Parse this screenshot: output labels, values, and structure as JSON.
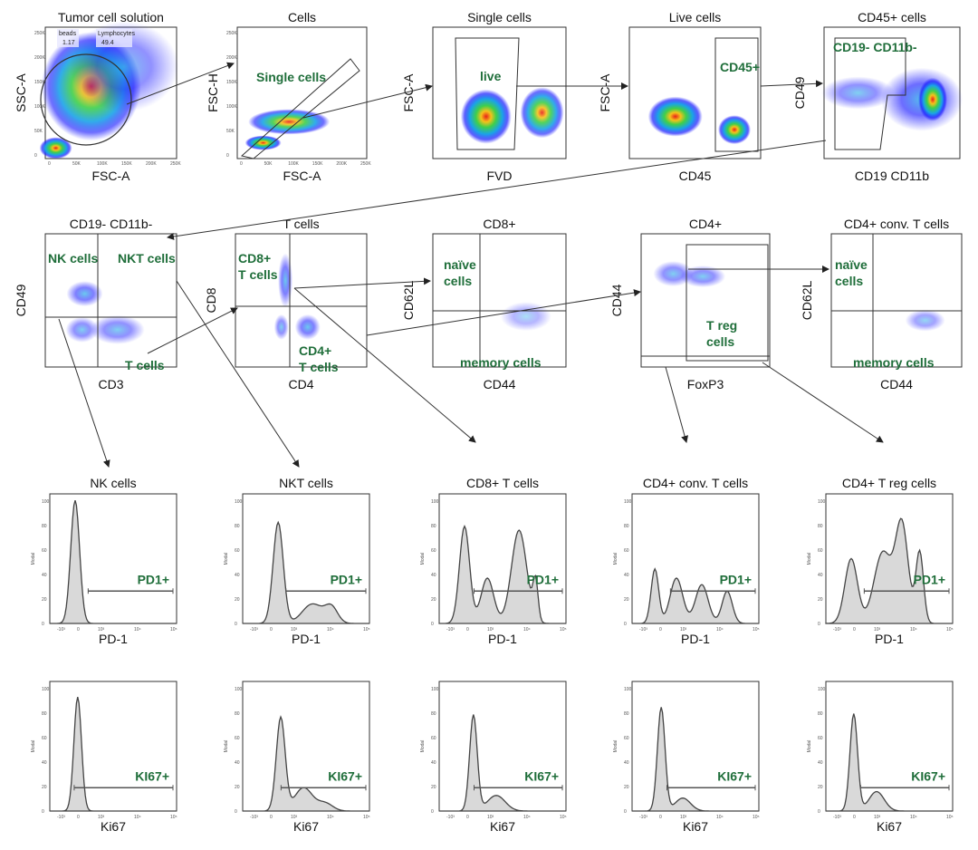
{
  "colors": {
    "gate_label": "#1f6e3a",
    "histogram_fill": "#d9d9d9",
    "density_high": "#e8201a",
    "density_low": "#1a1aff"
  },
  "scatter_panels": [
    {
      "title": "Tumor cell solution",
      "xlabel": "FSC-A",
      "ylabel": "SSC-A",
      "gates": [],
      "small_gates": [
        {
          "label": "beads",
          "value": "1.17"
        },
        {
          "label": "Lymphocytes",
          "value": "49.4"
        }
      ],
      "xticks": [
        "0",
        "50K",
        "100K",
        "150K",
        "200K",
        "250K"
      ],
      "yticks": [
        "0",
        "50K",
        "100K",
        "150K",
        "200K",
        "250K"
      ]
    },
    {
      "title": "Cells",
      "xlabel": "FSC-A",
      "ylabel": "FSC-H",
      "gates": [
        {
          "label": "Single cells"
        }
      ],
      "xticks": [
        "0",
        "50K",
        "100K",
        "150K",
        "200K",
        "250K"
      ],
      "yticks": [
        "0",
        "50K",
        "100K",
        "150K",
        "200K",
        "250K"
      ]
    },
    {
      "title": "Single cells",
      "xlabel": "FVD",
      "ylabel": "FSC-A",
      "gates": [
        {
          "label": "live"
        }
      ]
    },
    {
      "title": "Live cells",
      "xlabel": "CD45",
      "ylabel": "FSC-A",
      "gates": [
        {
          "label": "CD45+"
        }
      ]
    },
    {
      "title": "CD45+ cells",
      "xlabel": "CD19 CD11b",
      "ylabel": "CD49",
      "gates": [
        {
          "label": "CD19- CD11b-"
        }
      ]
    },
    {
      "title": "CD19- CD11b-",
      "xlabel": "CD3",
      "ylabel": "CD49",
      "gates": [
        {
          "label": "NK cells"
        },
        {
          "label": "NKT cells"
        },
        {
          "label": "T cells"
        }
      ]
    },
    {
      "title": "T cells",
      "xlabel": "CD4",
      "ylabel": "CD8",
      "gates": [
        {
          "label": "CD8+",
          "label2": "T cells"
        },
        {
          "label": "CD4+",
          "label2": "T cells"
        }
      ]
    },
    {
      "title": "CD8+",
      "xlabel": "CD44",
      "ylabel": "CD62L",
      "gates": [
        {
          "label": "naïve",
          "label2": "cells"
        },
        {
          "label": "memory cells"
        }
      ]
    },
    {
      "title": "CD4+",
      "xlabel": "FoxP3",
      "ylabel": "CD44",
      "gates": [
        {
          "label": "T reg",
          "label2": "cells"
        }
      ]
    },
    {
      "title": "CD4+ conv. T cells",
      "xlabel": "CD44",
      "ylabel": "CD62L",
      "gates": [
        {
          "label": "naïve",
          "label2": "cells"
        },
        {
          "label": "memory cells"
        }
      ]
    }
  ],
  "histogram_rows": [
    {
      "xlabel": "PD-1",
      "gate": "PD1+",
      "titles": [
        "NK cells",
        "NKT cells",
        "CD8+ T cells",
        "CD4+ conv. T cells",
        "CD4+ T reg cells"
      ]
    },
    {
      "xlabel": "Ki67",
      "gate": "KI67+",
      "titles": [
        "",
        "",
        "",
        "",
        ""
      ]
    }
  ],
  "histogram_axes": {
    "ylabel": "Modal",
    "yticks": [
      "0",
      "20",
      "40",
      "60",
      "80",
      "100"
    ],
    "xticks": [
      "-10³",
      "0",
      "10³",
      "10⁴",
      "10⁵"
    ]
  }
}
